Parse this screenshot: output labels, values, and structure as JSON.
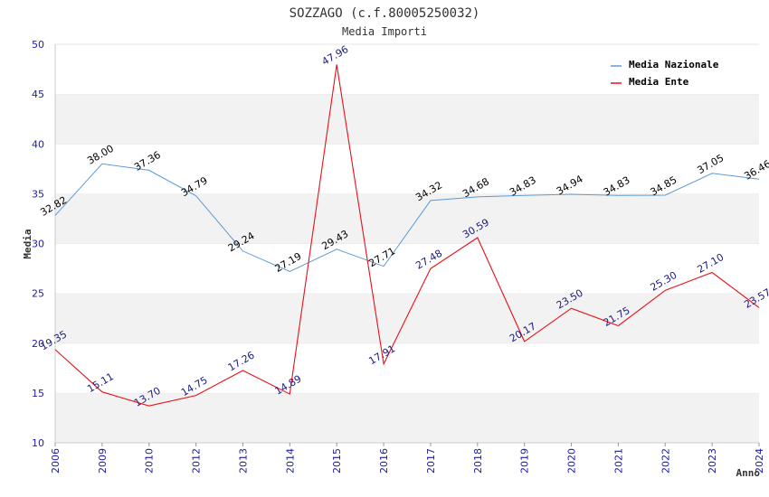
{
  "chart_data": {
    "type": "line",
    "title": "SOZZAGO (c.f.80005250032)",
    "subtitle": "Media Importi",
    "xlabel": "Anno",
    "ylabel": "Media",
    "ylim": [
      10,
      50
    ],
    "yticks": [
      "10",
      "15",
      "20",
      "25",
      "30",
      "35",
      "40",
      "45",
      "50"
    ],
    "categories": [
      "2006",
      "2009",
      "2010",
      "2012",
      "2013",
      "2014",
      "2015",
      "2016",
      "2017",
      "2018",
      "2019",
      "2020",
      "2021",
      "2022",
      "2023",
      "2024"
    ],
    "grid": "horizontal bands",
    "legend_position": "top-right",
    "series": [
      {
        "name": "Media Nazionale",
        "color": "#5b9bd5",
        "values": [
          32.82,
          38.0,
          37.36,
          34.79,
          29.24,
          27.19,
          29.43,
          27.71,
          34.32,
          34.68,
          34.83,
          34.94,
          34.83,
          34.85,
          37.05,
          36.46
        ],
        "labels": [
          "32.82",
          "38.00",
          "37.36",
          "34.79",
          "29.24",
          "27.19",
          "29.43",
          "27.71",
          "34.32",
          "34.68",
          "34.83",
          "34.94",
          "34.83",
          "34.85",
          "37.05",
          "36.46"
        ]
      },
      {
        "name": "Media Ente",
        "color": "#e8101a",
        "values": [
          19.35,
          15.11,
          13.7,
          14.75,
          17.26,
          14.89,
          47.96,
          17.91,
          27.48,
          30.59,
          20.17,
          23.5,
          21.75,
          25.3,
          27.1,
          23.57
        ],
        "labels": [
          "19.35",
          "15.11",
          "13.70",
          "14.75",
          "17.26",
          "14.89",
          "47.96",
          "17.91",
          "27.48",
          "30.59",
          "20.17",
          "23.50",
          "21.75",
          "25.30",
          "27.10",
          "23.57"
        ]
      }
    ]
  }
}
